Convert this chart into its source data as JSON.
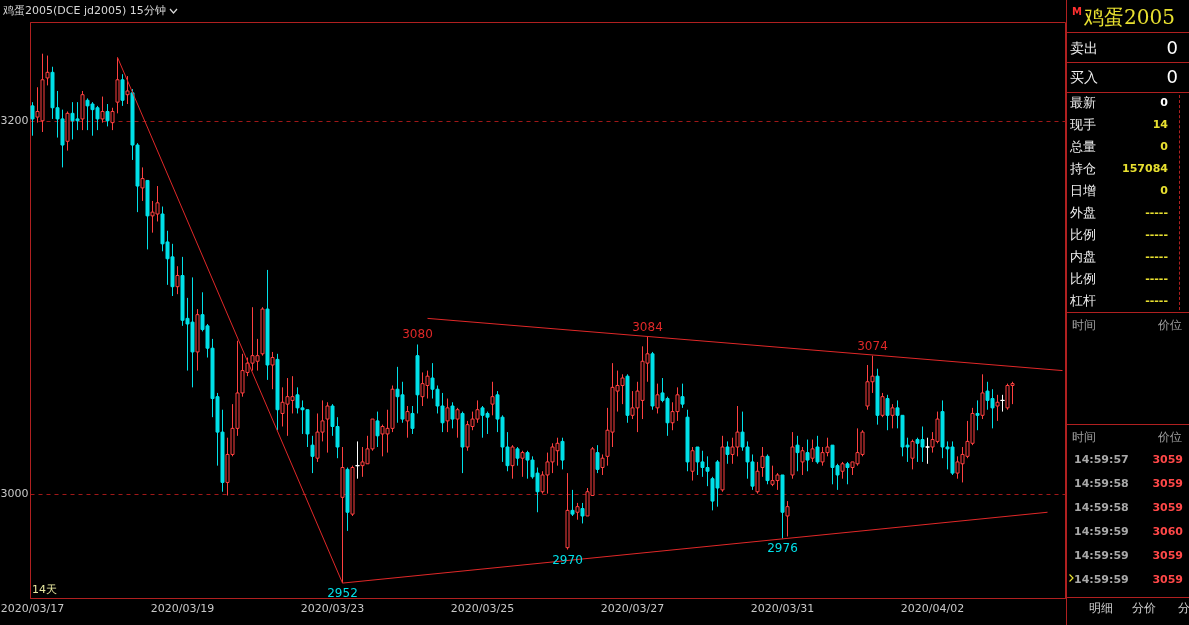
{
  "chart_data": [
    {
      "type": "candlestick",
      "title": "鸡蛋2005(DCE jd2005)  15分钟",
      "categories": [
        "2020/03/17",
        null,
        null,
        null,
        null,
        null,
        null,
        null,
        null,
        null,
        null,
        null,
        null,
        null,
        null,
        null,
        null,
        null,
        null,
        null,
        null,
        null,
        null,
        null,
        null,
        null,
        null,
        null,
        null,
        null,
        "2020/03/19",
        null,
        null,
        null,
        null,
        null,
        null,
        null,
        null,
        null,
        null,
        null,
        null,
        null,
        null,
        null,
        null,
        null,
        null,
        null,
        null,
        null,
        null,
        null,
        null,
        null,
        null,
        null,
        null,
        null,
        "2020/03/23",
        null,
        null,
        null,
        null,
        null,
        null,
        null,
        null,
        null,
        null,
        null,
        null,
        null,
        null,
        null,
        null,
        null,
        null,
        null,
        null,
        null,
        null,
        null,
        null,
        null,
        null,
        null,
        null,
        null,
        "2020/03/25",
        null,
        null,
        null,
        null,
        null,
        null,
        null,
        null,
        null,
        null,
        null,
        null,
        null,
        null,
        null,
        null,
        null,
        null,
        null,
        null,
        null,
        null,
        null,
        null,
        null,
        null,
        null,
        null,
        null,
        "2020/03/27",
        null,
        null,
        null,
        null,
        null,
        null,
        null,
        null,
        null,
        null,
        null,
        null,
        null,
        null,
        null,
        null,
        null,
        null,
        null,
        null,
        null,
        null,
        null,
        null,
        null,
        null,
        null,
        null,
        null,
        "2020/03/31",
        null,
        null,
        null,
        null,
        null,
        null,
        null,
        null,
        null,
        null,
        null,
        null,
        null,
        null,
        null,
        null,
        null,
        null,
        null,
        null,
        null,
        null,
        null,
        null,
        null,
        null,
        null,
        null,
        null,
        "2020/04/02",
        null,
        null,
        null,
        null,
        null,
        null,
        null,
        null,
        null,
        null,
        null,
        null,
        null,
        null,
        null,
        null,
        null,
        null,
        null,
        null,
        null,
        null,
        null,
        null,
        null,
        null
      ],
      "ohlc": [
        [
          3208,
          3210,
          3192,
          3201
        ],
        [
          3202,
          3218,
          3199,
          3205
        ],
        [
          3200,
          3236,
          3194,
          3222
        ],
        [
          3223,
          3235,
          3219,
          3226
        ],
        [
          3226,
          3229,
          3201,
          3207
        ],
        [
          3207,
          3216,
          3191,
          3201
        ],
        [
          3201,
          3206,
          3175,
          3187
        ],
        [
          3189,
          3205,
          3184,
          3204
        ],
        [
          3204,
          3210,
          3190,
          3200
        ],
        [
          3201,
          3210,
          3195,
          3200
        ],
        [
          3201,
          3216,
          3195,
          3214
        ],
        [
          3211,
          3212,
          3195,
          3208
        ],
        [
          3209,
          3210,
          3192,
          3206
        ],
        [
          3207,
          3208,
          3195,
          3201
        ],
        [
          3201,
          3213,
          3199,
          3205
        ],
        [
          3205,
          3209,
          3197,
          3200
        ],
        [
          3199,
          3207,
          3195,
          3205
        ],
        [
          3210,
          3234,
          3204,
          3222
        ],
        [
          3222,
          3225,
          3208,
          3211
        ],
        [
          3214,
          3224,
          3209,
          3216
        ],
        [
          3215,
          3217,
          3179,
          3187
        ],
        [
          3187,
          3188,
          3151,
          3165
        ],
        [
          3164,
          3175,
          3157,
          3169
        ],
        [
          3168,
          3168,
          3131,
          3149
        ],
        [
          3149,
          3157,
          3140,
          3151
        ],
        [
          3150,
          3165,
          3146,
          3156
        ],
        [
          3150,
          3154,
          3130,
          3134
        ],
        [
          3135,
          3141,
          3112,
          3126
        ],
        [
          3127,
          3134,
          3106,
          3111
        ],
        [
          3111,
          3122,
          3107,
          3117
        ],
        [
          3117,
          3127,
          3090,
          3093
        ],
        [
          3094,
          3105,
          3066,
          3091
        ],
        [
          3092,
          3116,
          3057,
          3076
        ],
        [
          3076,
          3099,
          3066,
          3096
        ],
        [
          3096,
          3108,
          3087,
          3088
        ],
        [
          3090,
          3091,
          3073,
          3078
        ],
        [
          3078,
          3083,
          3041,
          3051
        ],
        [
          3052,
          3054,
          3015,
          3033
        ],
        [
          3033,
          3045,
          3001,
          3006
        ],
        [
          3006,
          3030,
          2999,
          3021
        ],
        [
          3021,
          3048,
          3020,
          3035
        ],
        [
          3035,
          3082,
          3031,
          3054
        ],
        [
          3054,
          3075,
          3052,
          3066
        ],
        [
          3065,
          3073,
          3063,
          3070
        ],
        [
          3070,
          3100,
          3066,
          3074
        ],
        [
          3071,
          3083,
          3066,
          3074
        ],
        [
          3075,
          3100,
          3074,
          3099
        ],
        [
          3099,
          3120,
          3061,
          3069
        ],
        [
          3069,
          3076,
          3056,
          3073
        ],
        [
          3072,
          3075,
          3034,
          3045
        ],
        [
          3043,
          3057,
          3036,
          3049
        ],
        [
          3048,
          3062,
          3031,
          3052
        ],
        [
          3050,
          3063,
          3043,
          3052
        ],
        [
          3053,
          3057,
          3043,
          3046
        ],
        [
          3046,
          3050,
          3032,
          3045
        ],
        [
          3045,
          3045,
          3025,
          3032
        ],
        [
          3026,
          3031,
          3011,
          3020
        ],
        [
          3019,
          3043,
          3017,
          3033
        ],
        [
          3033,
          3050,
          3028,
          3039
        ],
        [
          3040,
          3049,
          3022,
          3047
        ],
        [
          3047,
          3048,
          3031,
          3036
        ],
        [
          3036,
          3041,
          3019,
          3025
        ],
        [
          2998,
          3025,
          2952,
          3014
        ],
        [
          3013,
          3014,
          2980,
          2990
        ],
        [
          2989,
          3015,
          2988,
          3014
        ],
        [
          3015,
          3028,
          3008,
          3015
        ],
        [
          3015,
          3025,
          3009,
          3017
        ],
        [
          3016,
          3031,
          3016,
          3024
        ],
        [
          3024,
          3040,
          3023,
          3040
        ],
        [
          3039,
          3044,
          3025,
          3031
        ],
        [
          3032,
          3037,
          3020,
          3036
        ],
        [
          3032,
          3045,
          3022,
          3035
        ],
        [
          3035,
          3058,
          3033,
          3056
        ],
        [
          3056,
          3068,
          3038,
          3052
        ],
        [
          3053,
          3060,
          3038,
          3040
        ],
        [
          3039,
          3047,
          3030,
          3044
        ],
        [
          3043,
          3047,
          3032,
          3035
        ],
        [
          3074,
          3080,
          3043,
          3053
        ],
        [
          3052,
          3065,
          3047,
          3059
        ],
        [
          3058,
          3066,
          3051,
          3063
        ],
        [
          3062,
          3070,
          3051,
          3056
        ],
        [
          3056,
          3058,
          3043,
          3047
        ],
        [
          3047,
          3054,
          3033,
          3038
        ],
        [
          3039,
          3051,
          3033,
          3046
        ],
        [
          3047,
          3049,
          3035,
          3040
        ],
        [
          3040,
          3046,
          3030,
          3045
        ],
        [
          3043,
          3044,
          3011,
          3025
        ],
        [
          3025,
          3039,
          3023,
          3037
        ],
        [
          3036,
          3044,
          3034,
          3040
        ],
        [
          3040,
          3050,
          3038,
          3045
        ],
        [
          3046,
          3047,
          3030,
          3042
        ],
        [
          3043,
          3044,
          3032,
          3041
        ],
        [
          3048,
          3060,
          3042,
          3052
        ],
        [
          3053,
          3055,
          3033,
          3040
        ],
        [
          3041,
          3042,
          3017,
          3025
        ],
        [
          3025,
          3033,
          3012,
          3015
        ],
        [
          3015,
          3026,
          3008,
          3025
        ],
        [
          3024,
          3025,
          3015,
          3019
        ],
        [
          3019,
          3023,
          3009,
          3022
        ],
        [
          3022,
          3023,
          3008,
          3018
        ],
        [
          3018,
          3020,
          3008,
          3009
        ],
        [
          3011,
          3014,
          2990,
          3001
        ],
        [
          3001,
          3012,
          3000,
          3010
        ],
        [
          3010,
          3022,
          3000,
          3017
        ],
        [
          3017,
          3027,
          3011,
          3025
        ],
        [
          3023,
          3030,
          3015,
          3027
        ],
        [
          3028,
          3030,
          3013,
          3018
        ],
        [
          2971,
          3011,
          2970,
          2991
        ],
        [
          2991,
          3002,
          2988,
          2989
        ],
        [
          2990,
          2995,
          2986,
          2993
        ],
        [
          2992,
          2995,
          2984,
          2988
        ],
        [
          2988,
          3003,
          2988,
          3001
        ],
        [
          2999,
          3025,
          2999,
          3024
        ],
        [
          3022,
          3026,
          3011,
          3013
        ],
        [
          3014,
          3021,
          3010,
          3019
        ],
        [
          3020,
          3046,
          3015,
          3034
        ],
        [
          3033,
          3070,
          3025,
          3057
        ],
        [
          3055,
          3066,
          3044,
          3058
        ],
        [
          3058,
          3064,
          3048,
          3062
        ],
        [
          3063,
          3064,
          3038,
          3042
        ],
        [
          3042,
          3055,
          3040,
          3046
        ],
        [
          3046,
          3060,
          3033,
          3055
        ],
        [
          3050,
          3079,
          3040,
          3071
        ],
        [
          3070,
          3084,
          3060,
          3075
        ],
        [
          3075,
          3076,
          3045,
          3047
        ],
        [
          3046,
          3059,
          3043,
          3053
        ],
        [
          3054,
          3062,
          3049,
          3050
        ],
        [
          3051,
          3052,
          3031,
          3038
        ],
        [
          3038,
          3049,
          3034,
          3044
        ],
        [
          3044,
          3057,
          3039,
          3053
        ],
        [
          3052,
          3059,
          3046,
          3048
        ],
        [
          3041,
          3045,
          3012,
          3017
        ],
        [
          3012,
          3025,
          3007,
          3023
        ],
        [
          3025,
          3025,
          3010,
          3017
        ],
        [
          3017,
          3023,
          3009,
          3014
        ],
        [
          3014,
          3020,
          3004,
          3012
        ],
        [
          3008,
          3009,
          2991,
          2996
        ],
        [
          3017,
          3018,
          2993,
          3003
        ],
        [
          3002,
          3031,
          3001,
          3025
        ],
        [
          3025,
          3028,
          3016,
          3021
        ],
        [
          3021,
          3030,
          3016,
          3025
        ],
        [
          3025,
          3047,
          3020,
          3033
        ],
        [
          3033,
          3044,
          3023,
          3025
        ],
        [
          3025,
          3028,
          3008,
          3017
        ],
        [
          3017,
          3021,
          3002,
          3004
        ],
        [
          3001,
          3017,
          3000,
          3012
        ],
        [
          3014,
          3025,
          3009,
          3020
        ],
        [
          3020,
          3021,
          3005,
          3007
        ],
        [
          3005,
          3015,
          3004,
          3007
        ],
        [
          3007,
          3011,
          3002,
          3010
        ],
        [
          3010,
          3010,
          2976,
          2990
        ],
        [
          2988,
          2996,
          2977,
          2993
        ],
        [
          3010,
          3033,
          3008,
          3025
        ],
        [
          3026,
          3031,
          3012,
          3022
        ],
        [
          3017,
          3025,
          3010,
          3023
        ],
        [
          3022,
          3029,
          3012,
          3018
        ],
        [
          3019,
          3029,
          3017,
          3024
        ],
        [
          3025,
          3031,
          3016,
          3017
        ],
        [
          3017,
          3025,
          3015,
          3022
        ],
        [
          3022,
          3030,
          3020,
          3025
        ],
        [
          3026,
          3026,
          3005,
          3014
        ],
        [
          3015,
          3016,
          3002,
          3010
        ],
        [
          3012,
          3017,
          3008,
          3016
        ],
        [
          3016,
          3017,
          3005,
          3014
        ],
        [
          3014,
          3017,
          3010,
          3017
        ],
        [
          3016,
          3035,
          3015,
          3022
        ],
        [
          3021,
          3034,
          3020,
          3033
        ],
        [
          3047,
          3069,
          3045,
          3060
        ],
        [
          3060,
          3074,
          3054,
          3063
        ],
        [
          3063,
          3067,
          3037,
          3042
        ],
        [
          3042,
          3054,
          3041,
          3052
        ],
        [
          3051,
          3053,
          3034,
          3042
        ],
        [
          3042,
          3048,
          3035,
          3046
        ],
        [
          3046,
          3050,
          3035,
          3042
        ],
        [
          3042,
          3042,
          3020,
          3025
        ],
        [
          3026,
          3030,
          3017,
          3025
        ],
        [
          3019,
          3029,
          3013,
          3028
        ],
        [
          3029,
          3030,
          3017,
          3027
        ],
        [
          3029,
          3036,
          3017,
          3025
        ],
        [
          3025,
          3030,
          3016,
          3025
        ],
        [
          3025,
          3033,
          3022,
          3029
        ],
        [
          3028,
          3044,
          3027,
          3040
        ],
        [
          3044,
          3050,
          3019,
          3025
        ],
        [
          3025,
          3028,
          3013,
          3024
        ],
        [
          3025,
          3028,
          3010,
          3011
        ],
        [
          3011,
          3020,
          3008,
          3017
        ],
        [
          3016,
          3025,
          3006,
          3021
        ],
        [
          3020,
          3039,
          3019,
          3028
        ],
        [
          3027,
          3046,
          3026,
          3043
        ],
        [
          3043,
          3050,
          3034,
          3042
        ],
        [
          3042,
          3064,
          3040,
          3054
        ],
        [
          3055,
          3060,
          3045,
          3050
        ],
        [
          3051,
          3056,
          3035,
          3046
        ],
        [
          3047,
          3053,
          3039,
          3049
        ],
        [
          3050,
          3053,
          3044,
          3050
        ],
        [
          3046,
          3059,
          3045,
          3058
        ],
        [
          3058,
          3060,
          3048,
          3059
        ],
        null,
        null,
        null,
        null,
        null,
        null,
        null,
        null,
        null,
        null
      ],
      "colors": [
        "#00e0e8",
        "#ff4040",
        "#ff4040",
        "#ff4040",
        "#00e0e8",
        "#00e0e8",
        "#00e0e8",
        "#ff4040",
        "#00e0e8",
        "#00e0e8",
        "#ff4040",
        "#00e0e8",
        "#00e0e8",
        "#00e0e8",
        "#ff4040",
        "#00e0e8",
        "#ff4040",
        "#ff4040",
        "#00e0e8",
        "#ff4040",
        "#00e0e8",
        "#00e0e8",
        "#ff4040",
        "#00e0e8",
        "#ff4040",
        "#ff4040",
        "#00e0e8",
        "#00e0e8",
        "#00e0e8",
        "#ff4040",
        "#00e0e8",
        "#00e0e8",
        "#00e0e8",
        "#ff4040",
        "#00e0e8",
        "#00e0e8",
        "#00e0e8",
        "#00e0e8",
        "#00e0e8",
        "#ff4040",
        "#ff4040",
        "#ff4040",
        "#ff4040",
        "#ff4040",
        "#ff4040",
        "#ff4040",
        "#ff4040",
        "#00e0e8",
        "#ff4040",
        "#00e0e8",
        "#ff4040",
        "#ff4040",
        "#ff4040",
        "#00e0e8",
        "#00e0e8",
        "#00e0e8",
        "#00e0e8",
        "#ff4040",
        "#ff4040",
        "#ff4040",
        "#00e0e8",
        "#00e0e8",
        "#ff4040",
        "#00e0e8",
        "#ff4040",
        "#ffffff",
        "#ff4040",
        "#ff4040",
        "#ff4040",
        "#00e0e8",
        "#ff4040",
        "#ff4040",
        "#ff4040",
        "#00e0e8",
        "#00e0e8",
        "#ff4040",
        "#00e0e8",
        "#00e0e8",
        "#ff4040",
        "#ff4040",
        "#00e0e8",
        "#00e0e8",
        "#00e0e8",
        "#ff4040",
        "#00e0e8",
        "#ff4040",
        "#00e0e8",
        "#ff4040",
        "#ff4040",
        "#ff4040",
        "#00e0e8",
        "#00e0e8",
        "#ff4040",
        "#00e0e8",
        "#00e0e8",
        "#00e0e8",
        "#ff4040",
        "#00e0e8",
        "#ff4040",
        "#00e0e8",
        "#00e0e8",
        "#00e0e8",
        "#ff4040",
        "#ff4040",
        "#ff4040",
        "#ff4040",
        "#00e0e8",
        "#ff4040",
        "#00e0e8",
        "#ff4040",
        "#00e0e8",
        "#ff4040",
        "#ff4040",
        "#00e0e8",
        "#ff4040",
        "#ff4040",
        "#ff4040",
        "#ff4040",
        "#ff4040",
        "#00e0e8",
        "#ff4040",
        "#ff4040",
        "#ff4040",
        "#ff4040",
        "#00e0e8",
        "#ff4040",
        "#00e0e8",
        "#00e0e8",
        "#ff4040",
        "#ff4040",
        "#00e0e8",
        "#00e0e8",
        "#ff4040",
        "#00e0e8",
        "#00e0e8",
        "#00e0e8",
        "#00e0e8",
        "#00e0e8",
        "#ff4040",
        "#00e0e8",
        "#ff4040",
        "#ff4040",
        "#00e0e8",
        "#00e0e8",
        "#00e0e8",
        "#ff4040",
        "#ff4040",
        "#00e0e8",
        "#ff4040",
        "#ff4040",
        "#00e0e8",
        "#ff4040",
        "#ff4040",
        "#00e0e8",
        "#ff4040",
        "#00e0e8",
        "#ff4040",
        "#00e0e8",
        "#ff4040",
        "#ff4040",
        "#00e0e8",
        "#00e0e8",
        "#ff4040",
        "#00e0e8",
        "#ff4040",
        "#ff4040",
        "#ff4040",
        "#ff4040",
        "#ff4040",
        "#00e0e8",
        "#ff4040",
        "#00e0e8",
        "#ff4040",
        "#00e0e8",
        "#00e0e8",
        "#00e0e8",
        "#ff4040",
        "#00e0e8",
        "#00e0e8",
        "#ffffff",
        "#ff4040",
        "#ff4040",
        "#00e0e8",
        "#00e0e8",
        "#00e0e8",
        "#ff4040",
        "#ff4040",
        "#ff4040",
        "#ff4040",
        "#00e0e8",
        "#ff4040",
        "#00e0e8",
        "#00e0e8",
        "#ff4040",
        "#ffffff",
        "#ff4040",
        "#ff4040",
        null,
        null,
        null,
        null,
        null,
        null,
        null,
        null,
        null,
        null
      ],
      "series": [
        {
          "type": "line",
          "color": "#e02828",
          "values": [
            null,
            null,
            null,
            null,
            null,
            null,
            null,
            null,
            null,
            null,
            null,
            null,
            null,
            null,
            null,
            null,
            null,
            3234,
            null,
            null,
            null,
            null,
            null,
            null,
            null,
            null,
            null,
            null,
            null,
            null,
            null,
            null,
            null,
            null,
            null,
            null,
            null,
            null,
            null,
            null,
            null,
            null,
            null,
            null,
            null,
            null,
            null,
            null,
            null,
            null,
            null,
            null,
            null,
            null,
            null,
            null,
            null,
            null,
            null,
            null,
            null,
            null,
            2952,
            null,
            null,
            null,
            null,
            null,
            null,
            null,
            null,
            null,
            null,
            null,
            null,
            null,
            null,
            null,
            null,
            null,
            null,
            null,
            null,
            null,
            null,
            null,
            null,
            null,
            null,
            null,
            null,
            null,
            null,
            null,
            null,
            null,
            null,
            null,
            null,
            null,
            null,
            null,
            null,
            null,
            null,
            null,
            null,
            null,
            null,
            null,
            null,
            null,
            null,
            null,
            null,
            null,
            null,
            null,
            null,
            null,
            null,
            null,
            null,
            null,
            null,
            null,
            null,
            null,
            null,
            null,
            null,
            null,
            null,
            null,
            null,
            null,
            null,
            null,
            null,
            null,
            null,
            null,
            null,
            null,
            null,
            null,
            null,
            null,
            null,
            null,
            null,
            null,
            null,
            null,
            null,
            null,
            null,
            null,
            null,
            null,
            null,
            null,
            null,
            null,
            null,
            null,
            null,
            null,
            null,
            null,
            null,
            null,
            null,
            null,
            null,
            null,
            null,
            null,
            null,
            null,
            null,
            null,
            null,
            null,
            null,
            null,
            null,
            null,
            null,
            null,
            null,
            null,
            null,
            null,
            null,
            null,
            null,
            null,
            null,
            null,
            null,
            null,
            null,
            null,
            null,
            null,
            null
          ]
        },
        {
          "type": "line",
          "color": "#e02828",
          "values": [
            null,
            null,
            null,
            null,
            null,
            null,
            null,
            null,
            null,
            null,
            null,
            null,
            null,
            null,
            null,
            null,
            null,
            null,
            null,
            null,
            null,
            null,
            null,
            null,
            null,
            null,
            null,
            null,
            null,
            null,
            null,
            null,
            null,
            null,
            null,
            null,
            null,
            null,
            null,
            null,
            null,
            null,
            null,
            null,
            null,
            null,
            null,
            null,
            null,
            null,
            null,
            null,
            null,
            null,
            null,
            null,
            null,
            null,
            null,
            null,
            null,
            null,
            2952,
            null,
            null,
            null,
            null,
            null,
            null,
            null,
            null,
            null,
            null,
            null,
            null,
            null,
            null,
            null,
            null,
            null,
            null,
            null,
            null,
            null,
            null,
            null,
            null,
            null,
            null,
            null,
            null,
            null,
            null,
            null,
            null,
            null,
            null,
            null,
            null,
            null,
            null,
            null,
            null,
            null,
            null,
            null,
            null,
            null,
            null,
            null,
            null,
            null,
            null,
            null,
            null,
            null,
            null,
            null,
            null,
            null,
            null,
            null,
            null,
            null,
            null,
            null,
            null,
            null,
            null,
            null,
            null,
            null,
            null,
            null,
            null,
            null,
            null,
            null,
            null,
            null,
            null,
            null,
            null,
            null,
            null,
            null,
            null,
            null,
            null,
            null,
            null,
            null,
            null,
            null,
            null,
            null,
            null,
            null,
            null,
            null,
            null,
            null,
            null,
            null,
            null,
            null,
            null,
            null,
            null,
            null,
            null,
            null,
            null,
            null,
            null,
            null,
            null,
            null,
            null,
            null,
            null,
            null,
            null,
            null,
            null,
            null,
            null,
            null,
            null,
            null,
            null,
            null,
            null,
            null,
            null,
            null,
            null,
            null,
            null,
            null,
            null,
            null,
            null,
            2990,
            null,
            null,
            null
          ]
        },
        {
          "type": "line",
          "color": "#e02828",
          "values": [
            null,
            null,
            null,
            null,
            null,
            null,
            null,
            null,
            null,
            null,
            null,
            null,
            null,
            null,
            null,
            null,
            null,
            null,
            null,
            null,
            null,
            null,
            null,
            null,
            null,
            null,
            null,
            null,
            null,
            null,
            null,
            null,
            null,
            null,
            null,
            null,
            null,
            null,
            null,
            null,
            null,
            null,
            null,
            null,
            null,
            null,
            null,
            null,
            null,
            null,
            null,
            null,
            null,
            null,
            null,
            null,
            null,
            null,
            null,
            null,
            null,
            null,
            null,
            null,
            null,
            null,
            null,
            null,
            null,
            null,
            null,
            null,
            null,
            null,
            null,
            null,
            null,
            null,
            null,
            3094,
            null,
            null,
            null,
            null,
            null,
            null,
            null,
            null,
            null,
            null,
            null,
            null,
            null,
            null,
            null,
            null,
            null,
            null,
            null,
            null,
            null,
            null,
            null,
            null,
            null,
            null,
            null,
            null,
            null,
            null,
            null,
            null,
            null,
            null,
            null,
            null,
            null,
            null,
            null,
            null,
            null,
            null,
            null,
            null,
            null,
            null,
            null,
            null,
            null,
            null,
            null,
            null,
            null,
            null,
            null,
            null,
            null,
            null,
            null,
            null,
            null,
            null,
            null,
            null,
            null,
            null,
            null,
            null,
            null,
            null,
            null,
            null,
            null,
            null,
            null,
            null,
            null,
            null,
            null,
            null,
            null,
            null,
            null,
            null,
            null,
            null,
            null,
            null,
            null,
            null,
            null,
            null,
            null,
            null,
            null,
            null,
            null,
            null,
            null,
            null,
            null,
            null,
            null,
            null,
            null,
            null,
            null,
            null,
            null,
            null,
            null,
            null,
            null,
            null,
            null,
            null,
            null,
            null,
            null,
            null,
            null,
            null,
            null,
            null,
            null,
            null,
            3066
          ]
        }
      ],
      "ylim": [
        2944,
        3253
      ],
      "yticks": [
        3000,
        3200
      ],
      "grid": "y",
      "annotations": [
        {
          "text": "3080",
          "y": 3080
        },
        {
          "text": "3084",
          "y": 3084
        },
        {
          "text": "3074",
          "y": 3074
        },
        {
          "text": "2952",
          "y": 2952
        },
        {
          "text": "2970",
          "y": 2970
        },
        {
          "text": "2976",
          "y": 2976
        },
        "14天"
      ]
    },
    {
      "type": "other",
      "title": "鸡蛋2005",
      "annotations": [
        "M",
        "卖出",
        "0",
        "买入",
        "0",
        "最新",
        "0",
        "现手",
        "14",
        "总量",
        "0",
        "持仓",
        "157084",
        "日增",
        "0",
        "外盘",
        "-----",
        "比例",
        "-----",
        "内盘",
        "-----",
        "比例",
        "-----",
        "杠杆",
        "-----",
        "时间",
        "价位",
        "时间",
        "价位",
        "14:59:57",
        "3059",
        "14:59:58",
        "3059",
        "14:59:58",
        "3059",
        "14:59:59",
        "3060",
        "14:59:59",
        "3059",
        "14:59:59",
        "3059",
        "明细",
        "分价",
        "分"
      ]
    }
  ]
}
